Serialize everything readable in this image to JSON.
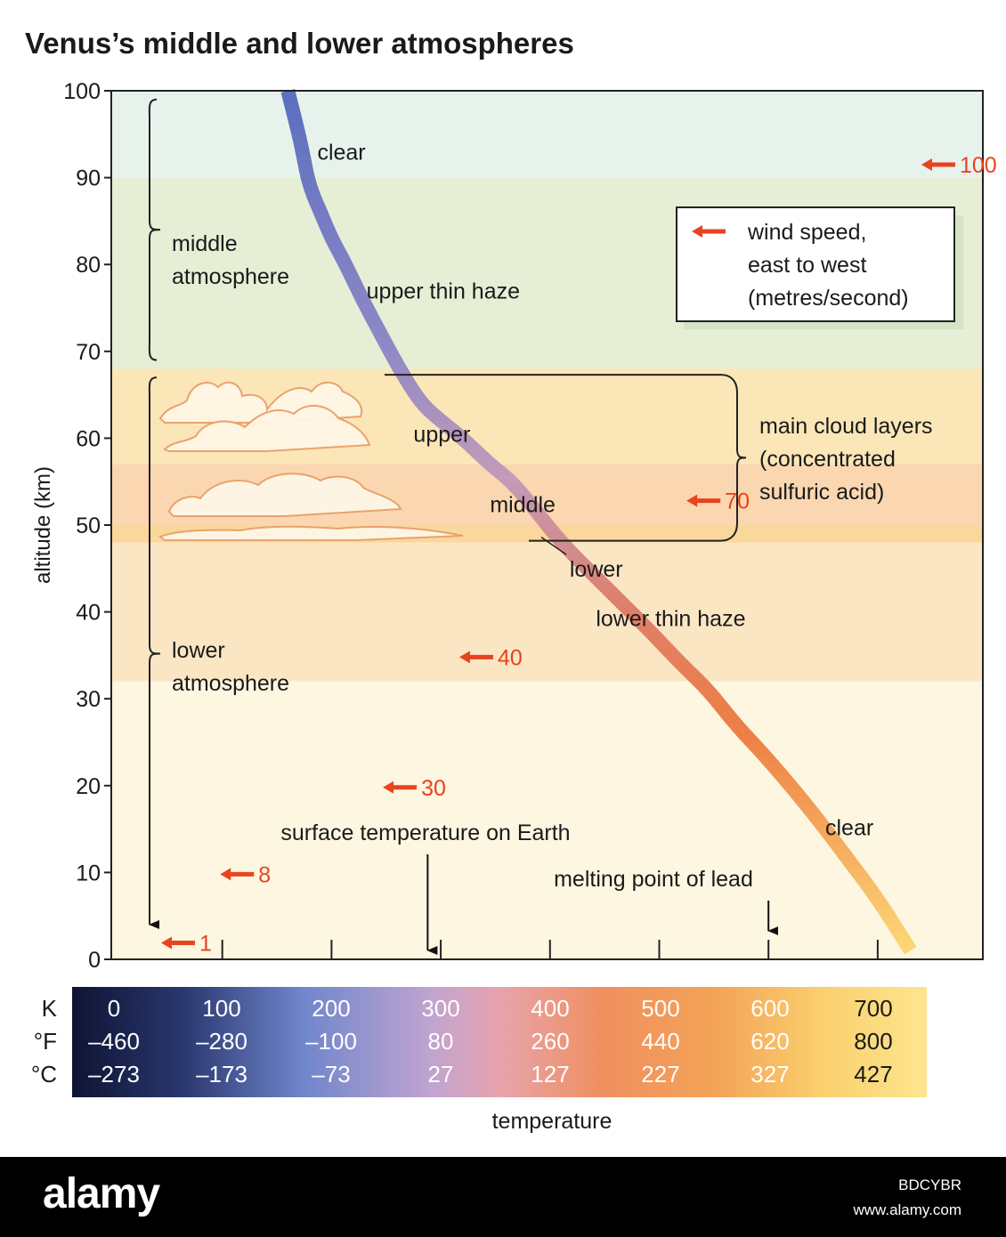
{
  "chart_data": {
    "type": "line",
    "title": "Venus’s middle and lower atmospheres",
    "ylabel": "altitude (km)",
    "xlabel": "temperature",
    "ylim": [
      0,
      100
    ],
    "xlim_K": [
      0,
      800
    ],
    "y_ticks": [
      "0",
      "10",
      "20",
      "30",
      "40",
      "50",
      "60",
      "70",
      "80",
      "90",
      "100"
    ],
    "series": [
      {
        "x_K": [
          160,
          170,
          175,
          178,
          183,
          190,
          200,
          213,
          228,
          245,
          262,
          282,
          300,
          320,
          345,
          365,
          385,
          410,
          450,
          490,
          520,
          545,
          570,
          600,
          640,
          670,
          700,
          730
        ],
        "y_km": [
          100,
          95,
          92,
          90,
          88,
          86,
          83,
          80,
          76,
          72,
          68,
          64,
          62,
          60,
          57,
          55,
          52,
          48,
          43,
          38,
          34,
          31,
          27,
          23,
          17,
          12,
          7,
          1
        ]
      }
    ],
    "bands": [
      {
        "from": 90,
        "to": 100,
        "color": "#e8f2ec"
      },
      {
        "from": 68,
        "to": 90,
        "color": "#e6eed6"
      },
      {
        "from": 57,
        "to": 68,
        "color": "#fbe6b8"
      },
      {
        "from": 50,
        "to": 57,
        "color": "#fad7b0"
      },
      {
        "from": 48,
        "to": 50,
        "color": "#fad79a"
      },
      {
        "from": 32,
        "to": 48,
        "color": "#fbe6c4"
      },
      {
        "from": 0,
        "to": 32,
        "color": "#fdf6e0"
      }
    ],
    "layer_labels": [
      {
        "text": "clear",
        "x_K": 187,
        "y_km": 93
      },
      {
        "text": "upper thin haze",
        "x_K": 232,
        "y_km": 77
      },
      {
        "text": "upper",
        "x_K": 275,
        "y_km": 60.5
      },
      {
        "text": "middle",
        "x_K": 345,
        "y_km": 52.4
      },
      {
        "text": "lower",
        "x_K": 418,
        "y_km": 45
      },
      {
        "text": "lower thin haze",
        "x_K": 442,
        "y_km": 39.3
      },
      {
        "text": "clear",
        "x_K": 652,
        "y_km": 15.2
      }
    ],
    "region_labels": {
      "middle": [
        "middle",
        "atmosphere"
      ],
      "lower": [
        "lower",
        "atmosphere"
      ],
      "clouds": [
        "main cloud layers",
        "(concentrated",
        "sulfuric acid)"
      ]
    },
    "wind_speeds": [
      {
        "value": "100",
        "x_K": 740,
        "y_km": 91.5
      },
      {
        "value": "70",
        "x_K": 525,
        "y_km": 52.8
      },
      {
        "value": "40",
        "x_K": 317,
        "y_km": 34.8
      },
      {
        "value": "30",
        "x_K": 247,
        "y_km": 19.8
      },
      {
        "value": "8",
        "x_K": 98,
        "y_km": 9.8
      },
      {
        "value": "1",
        "x_K": 44,
        "y_km": 1.9
      }
    ],
    "reference_marks": [
      {
        "label": "surface temperature on Earth",
        "x_K": 288
      },
      {
        "label": "melting point of lead",
        "x_K": 600
      }
    ],
    "legend": {
      "position": "top-right",
      "lines": [
        "wind speed,",
        "east to west",
        "(metres/second)"
      ]
    },
    "temperature_scale": {
      "row_labels": [
        "K",
        "°F",
        "°C"
      ],
      "K": [
        "0",
        "100",
        "200",
        "300",
        "400",
        "500",
        "600",
        "700"
      ],
      "F": [
        "–460",
        "–280",
        "–100",
        "80",
        "260",
        "440",
        "620",
        "800"
      ],
      "C": [
        "–273",
        "–173",
        "–73",
        "27",
        "127",
        "227",
        "327",
        "427"
      ]
    },
    "colors": {
      "wind_arrow": "#e8431f",
      "curve_gradient": [
        "#5b6fc0",
        "#8d86c4",
        "#c99bb5",
        "#e56a3a",
        "#f08a48",
        "#fdd36a"
      ],
      "scale_gradient": [
        "#0f1535",
        "#2c3a72",
        "#7a8fd0",
        "#d9a6b8",
        "#f08a4b",
        "#fbd46b",
        "#fde28a"
      ]
    }
  },
  "footer": {
    "logo": "alamy",
    "image_id": "BDCYBR",
    "url": "www.alamy.com"
  }
}
